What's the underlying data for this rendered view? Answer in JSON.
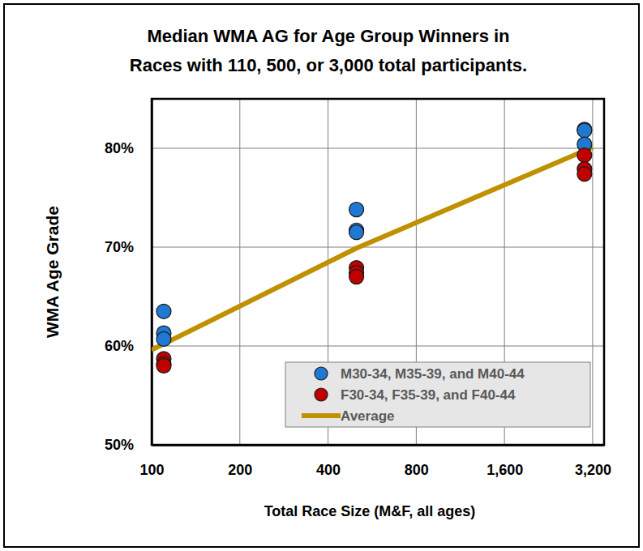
{
  "chart_data": {
    "type": "scatter",
    "title": [
      "Median WMA AG for Age Group Winners in",
      "Races with 110, 500, or 3,000 total participants."
    ],
    "x_label": "Total Race Size (M&F, all ages)",
    "y_label": "WMA Age Grade",
    "log": "x",
    "grid": true,
    "legend": "bottom-right",
    "xlim": [
      100,
      3500
    ],
    "xticks": [
      100,
      200,
      400,
      800,
      {
        "value": 1600,
        "label": "1,600"
      },
      {
        "value": 3200,
        "label": "3,200"
      }
    ],
    "ylim": [
      50,
      85
    ],
    "yticks": [
      {
        "value": 50,
        "label": "50%"
      },
      {
        "value": 60,
        "label": "60%"
      },
      {
        "value": 70,
        "label": "70%"
      },
      {
        "value": 80,
        "label": "80%"
      }
    ],
    "series": [
      {
        "name": "M30-34, M35-39, and M40-44",
        "type": "scatter",
        "marker": "circle",
        "color": "#1f78d2",
        "x": [
          110,
          110,
          110,
          500,
          500,
          500,
          3000,
          3000,
          3000
        ],
        "values": [
          63.5,
          61.3,
          60.7,
          73.8,
          71.7,
          71.5,
          81.9,
          81.8,
          80.4
        ]
      },
      {
        "name": "F30-34, F35-39, and F40-44",
        "type": "scatter",
        "marker": "circle",
        "color": "#c00000",
        "x": [
          110,
          110,
          110,
          500,
          500,
          500,
          3000,
          3000,
          3000
        ],
        "values": [
          58.7,
          58.2,
          58.0,
          67.9,
          67.4,
          67.0,
          79.3,
          77.9,
          77.4
        ]
      },
      {
        "name": "Average",
        "type": "line",
        "line_style": "solid",
        "color": "#bf9000",
        "x": [
          100,
          500,
          3200
        ],
        "values": [
          59.6,
          69.9,
          80.1
        ]
      }
    ]
  }
}
